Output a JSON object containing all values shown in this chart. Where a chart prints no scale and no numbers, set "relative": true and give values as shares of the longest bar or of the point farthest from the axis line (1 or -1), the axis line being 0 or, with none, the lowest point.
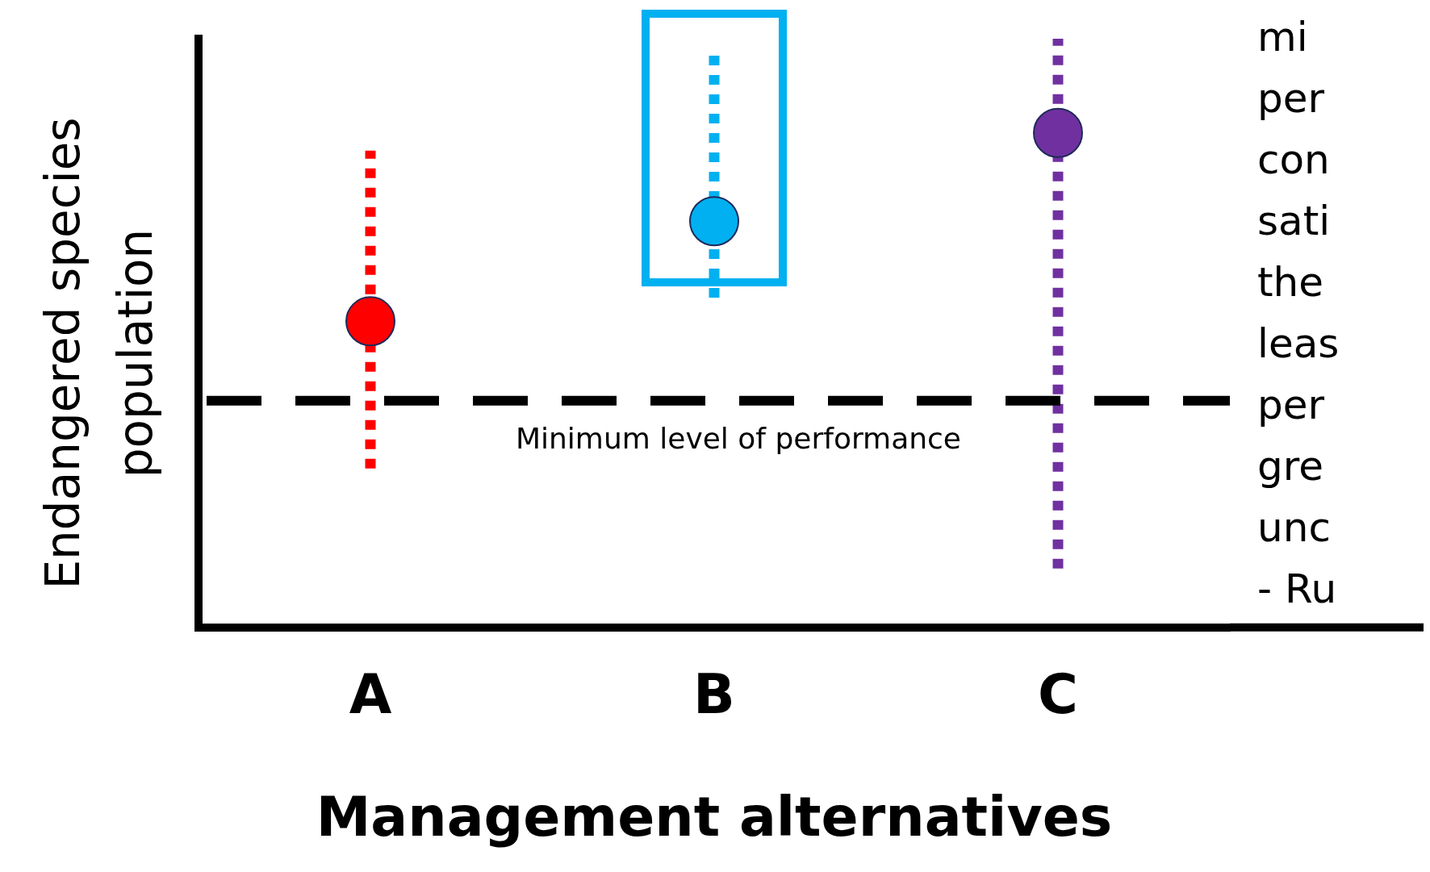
{
  "chart_data": {
    "type": "scatter",
    "relative": true,
    "xlabel": "Management alternatives",
    "ylabel": "Endangered species\npopulation",
    "categories": [
      "A",
      "B",
      "C"
    ],
    "series": [
      {
        "type": "line",
        "x": [
          "A",
          "A"
        ],
        "values": [
          0.27,
          0.81
        ],
        "color": "#ff0000",
        "line_style": "dotted",
        "marker": "none"
      },
      {
        "type": "line",
        "x": [
          "B",
          "B"
        ],
        "values": [
          0.56,
          0.98
        ],
        "color": "#00b0f0",
        "line_style": "dotted",
        "marker": "none"
      },
      {
        "type": "line",
        "x": [
          "C",
          "C"
        ],
        "values": [
          0.1,
          1
        ],
        "color": "#7030a0",
        "line_style": "dotted",
        "marker": "none"
      },
      {
        "type": "scatter",
        "values": [
          0.52,
          0.69,
          0.84
        ],
        "colors": [
          "#ff0000",
          "#00b0f0",
          "#7030a0"
        ],
        "marker": "circle"
      }
    ],
    "ref_lines": [
      {
        "axis": "y",
        "value": 0.385,
        "label": "Minimum level of performance",
        "color": "#000000",
        "line_style": "dashed"
      }
    ],
    "annotations": [
      "mi",
      "per",
      "con",
      "sati",
      "the",
      "leas",
      "per",
      "gre",
      "unc",
      "- Ru"
    ],
    "grid": false,
    "legend": false
  }
}
